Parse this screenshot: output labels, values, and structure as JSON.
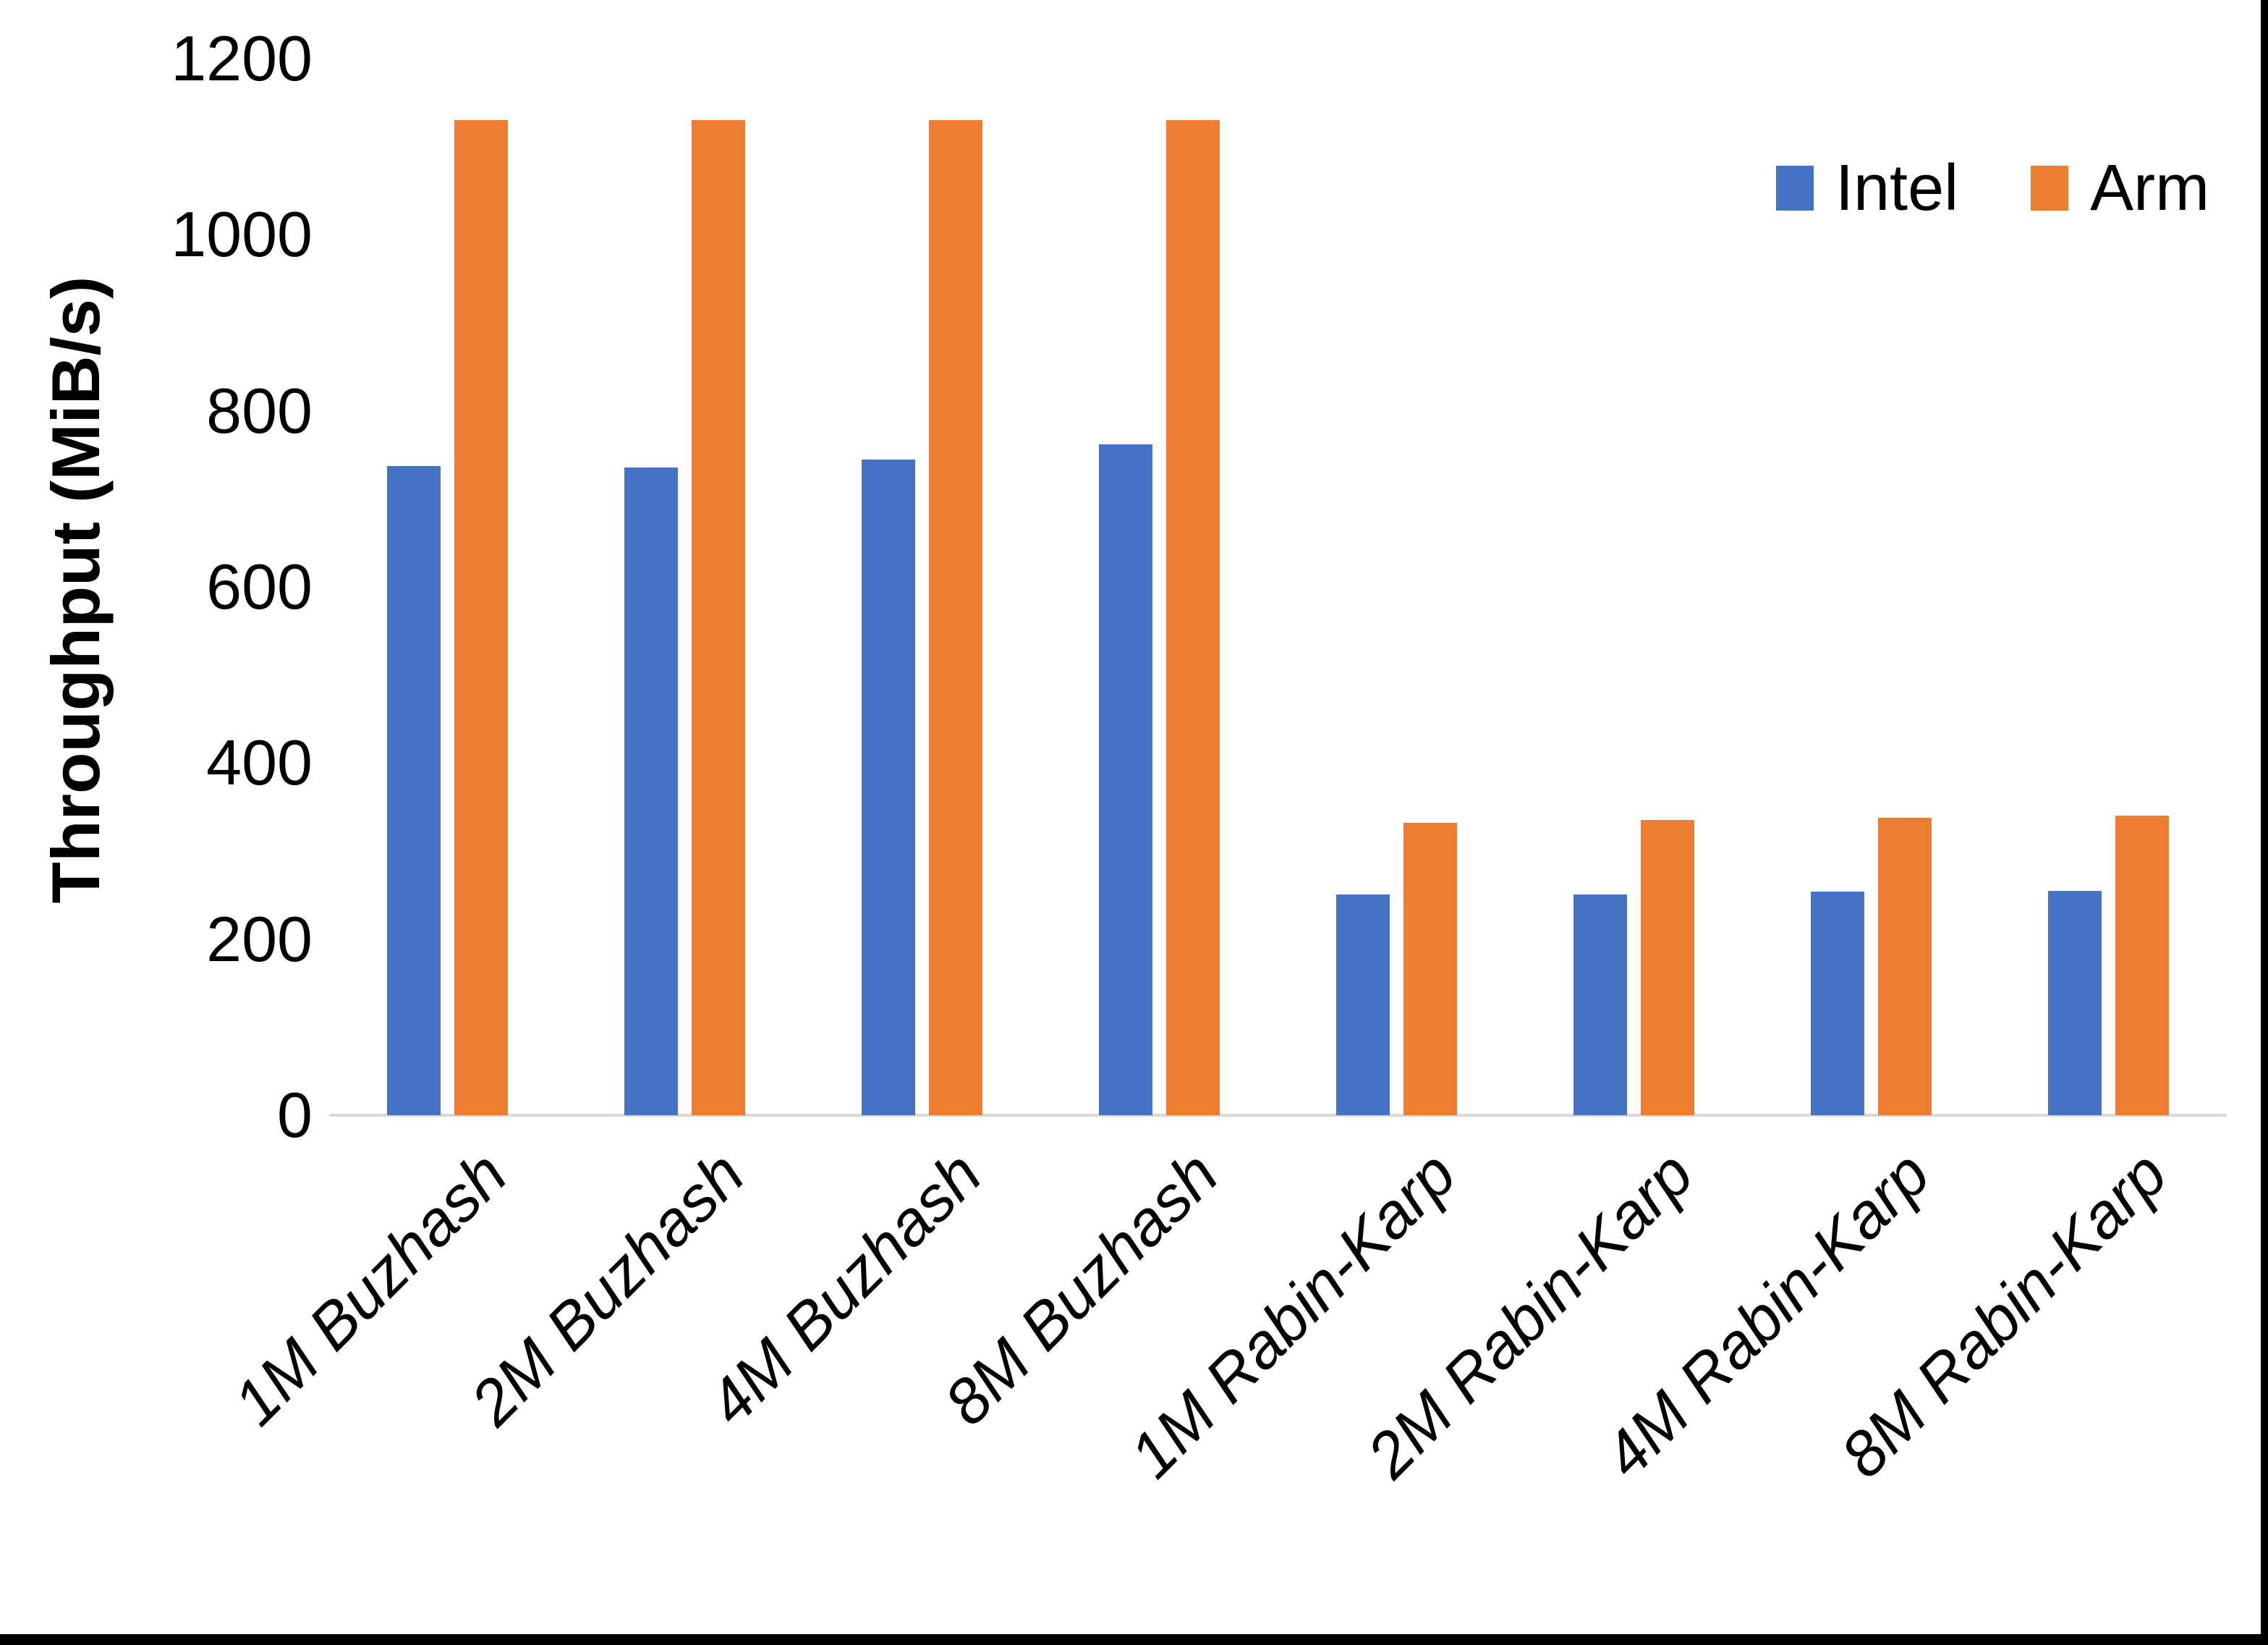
{
  "chart_data": {
    "type": "bar",
    "title": "",
    "xlabel": "",
    "ylabel": "Throughput (MiB/s)",
    "categories": [
      "1M Buzhash",
      "2M Buzhash",
      "4M Buzhash",
      "8M Buzhash",
      "1M Rabin-Karp",
      "2M Rabin-Karp",
      "4M Rabin-Karp",
      "8M Rabin-Karp"
    ],
    "series": [
      {
        "name": "Intel",
        "color": "#4472C4",
        "values": [
          737,
          736,
          745,
          762,
          251,
          251,
          254,
          255
        ]
      },
      {
        "name": "Arm",
        "color": "#ED7D31",
        "values": [
          1130,
          1130,
          1130,
          1130,
          332,
          335,
          338,
          340
        ]
      }
    ],
    "ylim": [
      0,
      1200
    ],
    "yticks": [
      0,
      200,
      400,
      600,
      800,
      1000,
      1200
    ],
    "grid": false,
    "legend_position": "top-right",
    "axis_line_color": "#D9D9D9",
    "x_label_rotation_deg": -45
  },
  "legend": {
    "items": [
      {
        "label": "Intel",
        "color": "#4472C4"
      },
      {
        "label": "Arm",
        "color": "#ED7D31"
      }
    ]
  }
}
